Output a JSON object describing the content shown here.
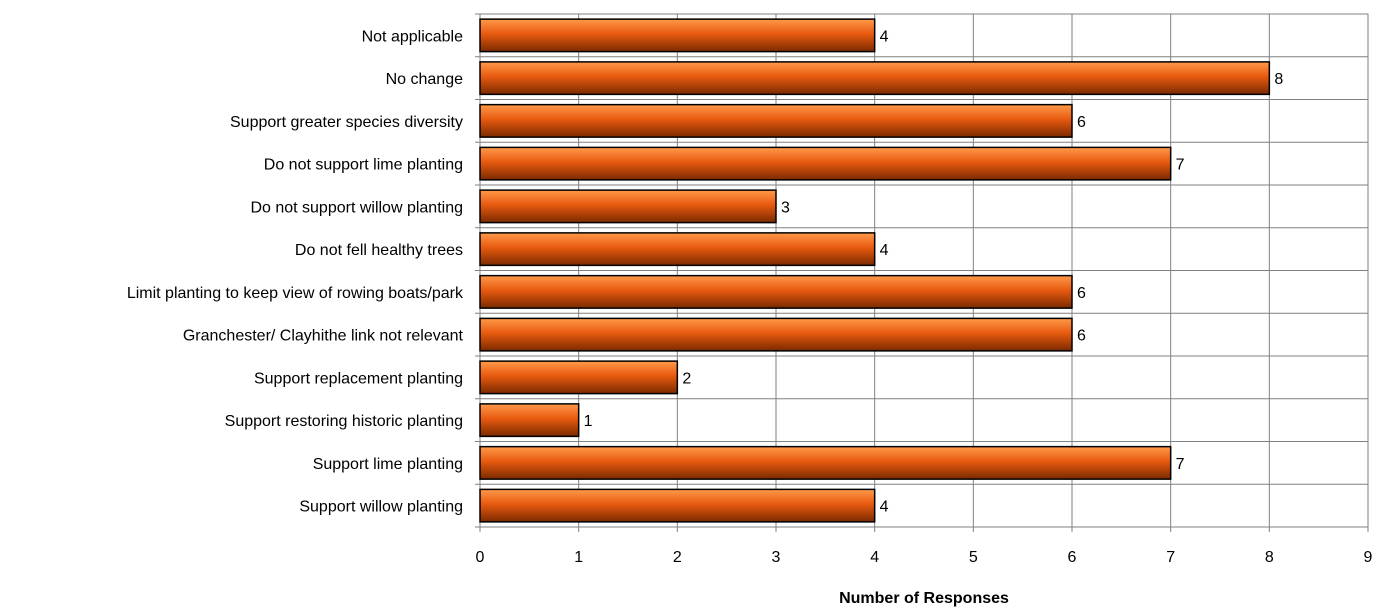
{
  "chart_data": {
    "type": "bar",
    "orientation": "horizontal",
    "categories": [
      "Not applicable",
      "No change",
      "Support greater species diversity",
      "Do not support lime planting",
      "Do not support willow planting",
      "Do not fell healthy trees",
      "Limit planting to keep view of rowing boats/park",
      "Granchester/ Clayhithe link not relevant",
      "Support replacement planting",
      "Support restoring historic planting",
      "Support lime planting",
      "Support willow planting"
    ],
    "values": [
      4,
      8,
      6,
      7,
      3,
      4,
      6,
      6,
      2,
      1,
      7,
      4
    ],
    "title": "",
    "xlabel": "Number of Responses",
    "ylabel": "",
    "xlim": [
      0,
      9
    ],
    "xticks": [
      "0",
      "1",
      "2",
      "3",
      "4",
      "5",
      "6",
      "7",
      "8",
      "9"
    ],
    "grid": true,
    "data_labels": true,
    "colors": {
      "bar_light": "#ff8a3a",
      "bar_mid": "#e85a10",
      "bar_dark": "#7a2a00",
      "bar_border": "#000000",
      "grid": "#808080"
    }
  }
}
